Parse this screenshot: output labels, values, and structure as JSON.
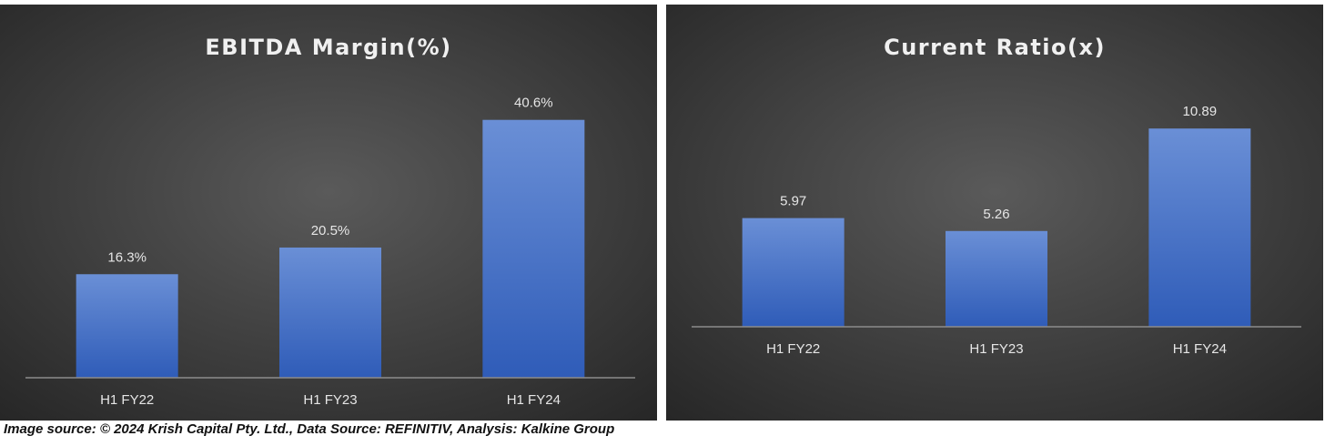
{
  "chart_data": [
    {
      "type": "bar",
      "title": "EBITDA Margin(%)",
      "categories": [
        "H1 FY22",
        "H1 FY23",
        "H1 FY24"
      ],
      "values": [
        16.3,
        20.5,
        40.6
      ],
      "data_labels": [
        "16.3%",
        "20.5%",
        "40.6%"
      ],
      "ylim": [
        0,
        45
      ],
      "grid": false,
      "bar_color": "#4472C4"
    },
    {
      "type": "bar",
      "title": "Current Ratio(x)",
      "categories": [
        "H1 FY22",
        "H1 FY23",
        "H1 FY24"
      ],
      "values": [
        5.97,
        5.26,
        10.89
      ],
      "data_labels": [
        "5.97",
        "5.26",
        "10.89"
      ],
      "ylim": [
        0,
        12
      ],
      "grid": false,
      "bar_color": "#4472C4"
    }
  ],
  "caption": "Image source: © 2024 Krish Capital Pty. Ltd., Data Source: REFINITIV, Analysis: Kalkine Group",
  "colors": {
    "panel_bg_center": "#5a5a5a",
    "panel_bg_edge": "#262626",
    "text": "#e6e6e6",
    "axis": "#8c8c8c"
  }
}
